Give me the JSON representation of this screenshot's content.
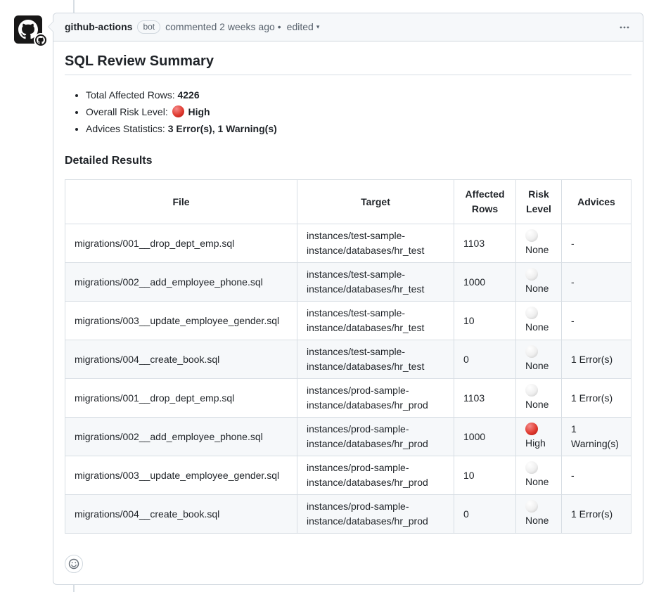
{
  "comment": {
    "author": "github-actions",
    "bot_label": "bot",
    "commented_text": "commented 2 weeks ago",
    "separator": "•",
    "edited_label": "edited",
    "avatar_icon": "github-octocat-logo",
    "avatar_badge_icon": "github-octocat-badge",
    "kebab_icon": "kebab-horizontal-menu",
    "edited_chevron_icon": "chevron-down"
  },
  "content": {
    "title": "SQL Review Summary",
    "summary": [
      {
        "label": "Total Affected Rows:",
        "value": "4226",
        "risk": ""
      },
      {
        "label": "Overall Risk Level:",
        "value": "High",
        "risk": "high"
      },
      {
        "label": "Advices Statistics:",
        "value": "3 Error(s), 1 Warning(s)",
        "risk": ""
      }
    ],
    "details_heading": "Detailed Results",
    "table": {
      "columns": [
        "File",
        "Target",
        "Affected Rows",
        "Risk Level",
        "Advices"
      ],
      "rows": [
        {
          "file": "migrations/001__drop_dept_emp.sql",
          "target": "instances/test-sample-instance/databases/hr_test",
          "affected_rows": "1103",
          "risk_level": "None",
          "risk": "none",
          "advices": "-"
        },
        {
          "file": "migrations/002__add_employee_phone.sql",
          "target": "instances/test-sample-instance/databases/hr_test",
          "affected_rows": "1000",
          "risk_level": "None",
          "risk": "none",
          "advices": "-"
        },
        {
          "file": "migrations/003__update_employee_gender.sql",
          "target": "instances/test-sample-instance/databases/hr_test",
          "affected_rows": "10",
          "risk_level": "None",
          "risk": "none",
          "advices": "-"
        },
        {
          "file": "migrations/004__create_book.sql",
          "target": "instances/test-sample-instance/databases/hr_test",
          "affected_rows": "0",
          "risk_level": "None",
          "risk": "none",
          "advices": "1 Error(s)"
        },
        {
          "file": "migrations/001__drop_dept_emp.sql",
          "target": "instances/prod-sample-instance/databases/hr_prod",
          "affected_rows": "1103",
          "risk_level": "None",
          "risk": "none",
          "advices": "1 Error(s)"
        },
        {
          "file": "migrations/002__add_employee_phone.sql",
          "target": "instances/prod-sample-instance/databases/hr_prod",
          "affected_rows": "1000",
          "risk_level": "High",
          "risk": "high",
          "advices": "1 Warning(s)"
        },
        {
          "file": "migrations/003__update_employee_gender.sql",
          "target": "instances/prod-sample-instance/databases/hr_prod",
          "affected_rows": "10",
          "risk_level": "None",
          "risk": "none",
          "advices": "-"
        },
        {
          "file": "migrations/004__create_book.sql",
          "target": "instances/prod-sample-instance/databases/hr_prod",
          "affected_rows": "0",
          "risk_level": "None",
          "risk": "none",
          "advices": "1 Error(s)"
        }
      ]
    },
    "add_reaction_icon": "smiley-face"
  },
  "colors": {
    "border": "#d0d7de",
    "table_border": "#d8dee4",
    "header_bg": "#f6f8fa",
    "zebra_bg": "#f6f8fa",
    "text": "#1f2328",
    "muted": "#59636e",
    "risk_high": "#e03c31",
    "risk_none": "#e8e8e8"
  }
}
